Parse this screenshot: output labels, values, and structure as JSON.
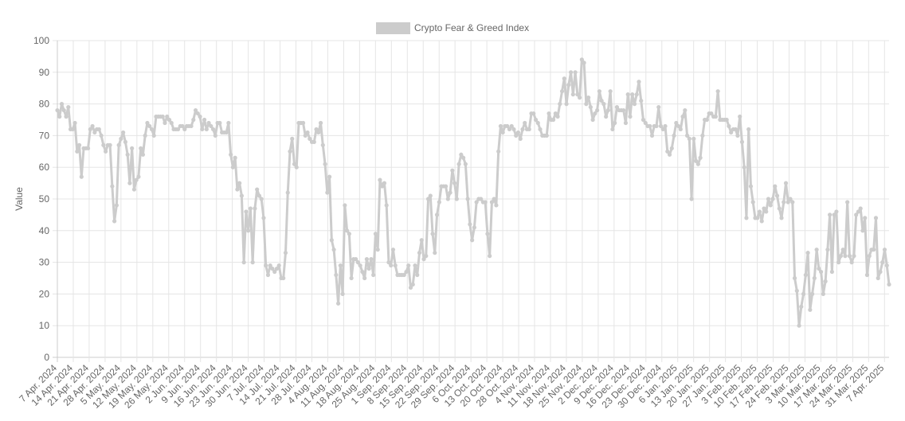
{
  "chart_data": {
    "type": "line",
    "title": "",
    "xlabel": "",
    "ylabel": "Value",
    "ylim": [
      0,
      100
    ],
    "yticks": [
      0,
      10,
      20,
      30,
      40,
      50,
      60,
      70,
      80,
      90,
      100
    ],
    "grid": true,
    "legend_position": "top-center",
    "x_start": "2024-04-07",
    "x_end": "2025-04-08",
    "x_tick_labels": [
      "7 Apr. 2024",
      "14 Apr. 2024",
      "21 Apr. 2024",
      "28 Apr. 2024",
      "5 May. 2024",
      "12 May. 2024",
      "19 May. 2024",
      "26 May. 2024",
      "2 Jun. 2024",
      "9 Jun. 2024",
      "16 Jun. 2024",
      "23 Jun. 2024",
      "30 Jun. 2024",
      "7 Jul. 2024",
      "14 Jul. 2024",
      "21 Jul. 2024",
      "28 Jul. 2024",
      "4 Aug. 2024",
      "11 Aug. 2024",
      "18 Aug. 2024",
      "25 Aug. 2024",
      "1 Sep. 2024",
      "8 Sep. 2024",
      "15 Sep. 2024",
      "22 Sep. 2024",
      "29 Sep. 2024",
      "6 Oct. 2024",
      "13 Oct. 2024",
      "20 Oct. 2024",
      "28 Oct. 2024",
      "4 Nov. 2024",
      "11 Nov. 2024",
      "18 Nov. 2024",
      "25 Nov. 2024",
      "2 Dec. 2024",
      "9 Dec. 2024",
      "16 Dec. 2024",
      "23 Dec. 2024",
      "30 Dec. 2024",
      "6 Jan. 2025",
      "13 Jan. 2025",
      "20 Jan. 2025",
      "27 Jan. 2025",
      "3 Feb. 2025",
      "10 Feb. 2025",
      "17 Feb. 2025",
      "24 Feb. 2025",
      "3 Mar. 2025",
      "10 Mar. 2025",
      "17 Mar. 2025",
      "24 Mar. 2025",
      "31 Mar. 2025",
      "7 Apr. 2025"
    ],
    "series": [
      {
        "name": "Crypto Fear & Greed Index",
        "color": "#cccccc",
        "values": [
          78,
          76,
          80,
          78,
          76,
          79,
          72,
          72,
          74,
          65,
          67,
          57,
          66,
          66,
          66,
          72,
          73,
          71,
          72,
          72,
          70,
          67,
          65,
          67,
          67,
          54,
          43,
          48,
          67,
          69,
          71,
          68,
          64,
          55,
          66,
          53,
          56,
          57,
          66,
          64,
          70,
          74,
          73,
          72,
          70,
          76,
          76,
          76,
          76,
          74,
          76,
          75,
          74,
          72,
          72,
          72,
          73,
          73,
          72,
          73,
          73,
          73,
          75,
          78,
          77,
          76,
          72,
          75,
          72,
          74,
          73,
          72,
          70,
          74,
          74,
          71,
          71,
          71,
          74,
          64,
          60,
          63,
          53,
          55,
          51,
          30,
          46,
          40,
          47,
          30,
          47,
          53,
          51,
          50,
          44,
          29,
          26,
          29,
          28,
          27,
          28,
          29,
          25,
          25,
          33,
          52,
          65,
          69,
          61,
          60,
          74,
          74,
          74,
          70,
          71,
          69,
          68,
          68,
          72,
          71,
          74,
          67,
          61,
          52,
          57,
          37,
          34,
          26,
          17,
          29,
          20,
          48,
          40,
          39,
          25,
          31,
          31,
          30,
          29,
          27,
          25,
          31,
          28,
          31,
          26,
          39,
          34,
          56,
          54,
          55,
          48,
          30,
          29,
          34,
          29,
          26,
          26,
          26,
          26,
          27,
          29,
          22,
          23,
          29,
          26,
          33,
          37,
          31,
          32,
          50,
          51,
          39,
          33,
          45,
          49,
          54,
          54,
          54,
          50,
          52,
          59,
          55,
          50,
          61,
          64,
          63,
          61,
          50,
          42,
          37,
          41,
          49,
          50,
          50,
          49,
          49,
          39,
          32,
          49,
          50,
          48,
          65,
          73,
          71,
          73,
          73,
          72,
          73,
          72,
          70,
          71,
          69,
          72,
          74,
          72,
          72,
          77,
          77,
          75,
          74,
          72,
          70,
          70,
          70,
          77,
          75,
          75,
          77,
          76,
          80,
          84,
          88,
          80,
          86,
          90,
          83,
          90,
          83,
          82,
          94,
          93,
          80,
          82,
          79,
          75,
          77,
          78,
          84,
          81,
          80,
          76,
          78,
          84,
          72,
          74,
          79,
          78,
          78,
          78,
          74,
          83,
          76,
          83,
          80,
          83,
          87,
          81,
          75,
          74,
          73,
          73,
          70,
          73,
          73,
          79,
          73,
          72,
          73,
          65,
          64,
          66,
          70,
          74,
          73,
          72,
          76,
          78,
          70,
          69,
          50,
          69,
          62,
          61,
          63,
          70,
          75,
          75,
          77,
          77,
          76,
          76,
          84,
          75,
          75,
          75,
          75,
          73,
          71,
          72,
          72,
          70,
          76,
          68,
          60,
          44,
          72,
          54,
          49,
          44,
          44,
          46,
          43,
          47,
          46,
          50,
          48,
          50,
          54,
          51,
          47,
          44,
          49,
          55,
          49,
          50,
          49,
          25,
          21,
          10,
          16,
          20,
          26,
          33,
          15,
          20,
          25,
          34,
          28,
          27,
          20,
          24,
          34,
          45,
          27,
          45,
          46,
          30,
          32,
          34,
          32,
          49,
          32,
          30,
          32,
          45,
          46,
          47,
          40,
          44,
          26,
          32,
          34,
          34,
          44,
          25,
          27,
          30,
          34,
          29,
          23
        ]
      }
    ]
  }
}
